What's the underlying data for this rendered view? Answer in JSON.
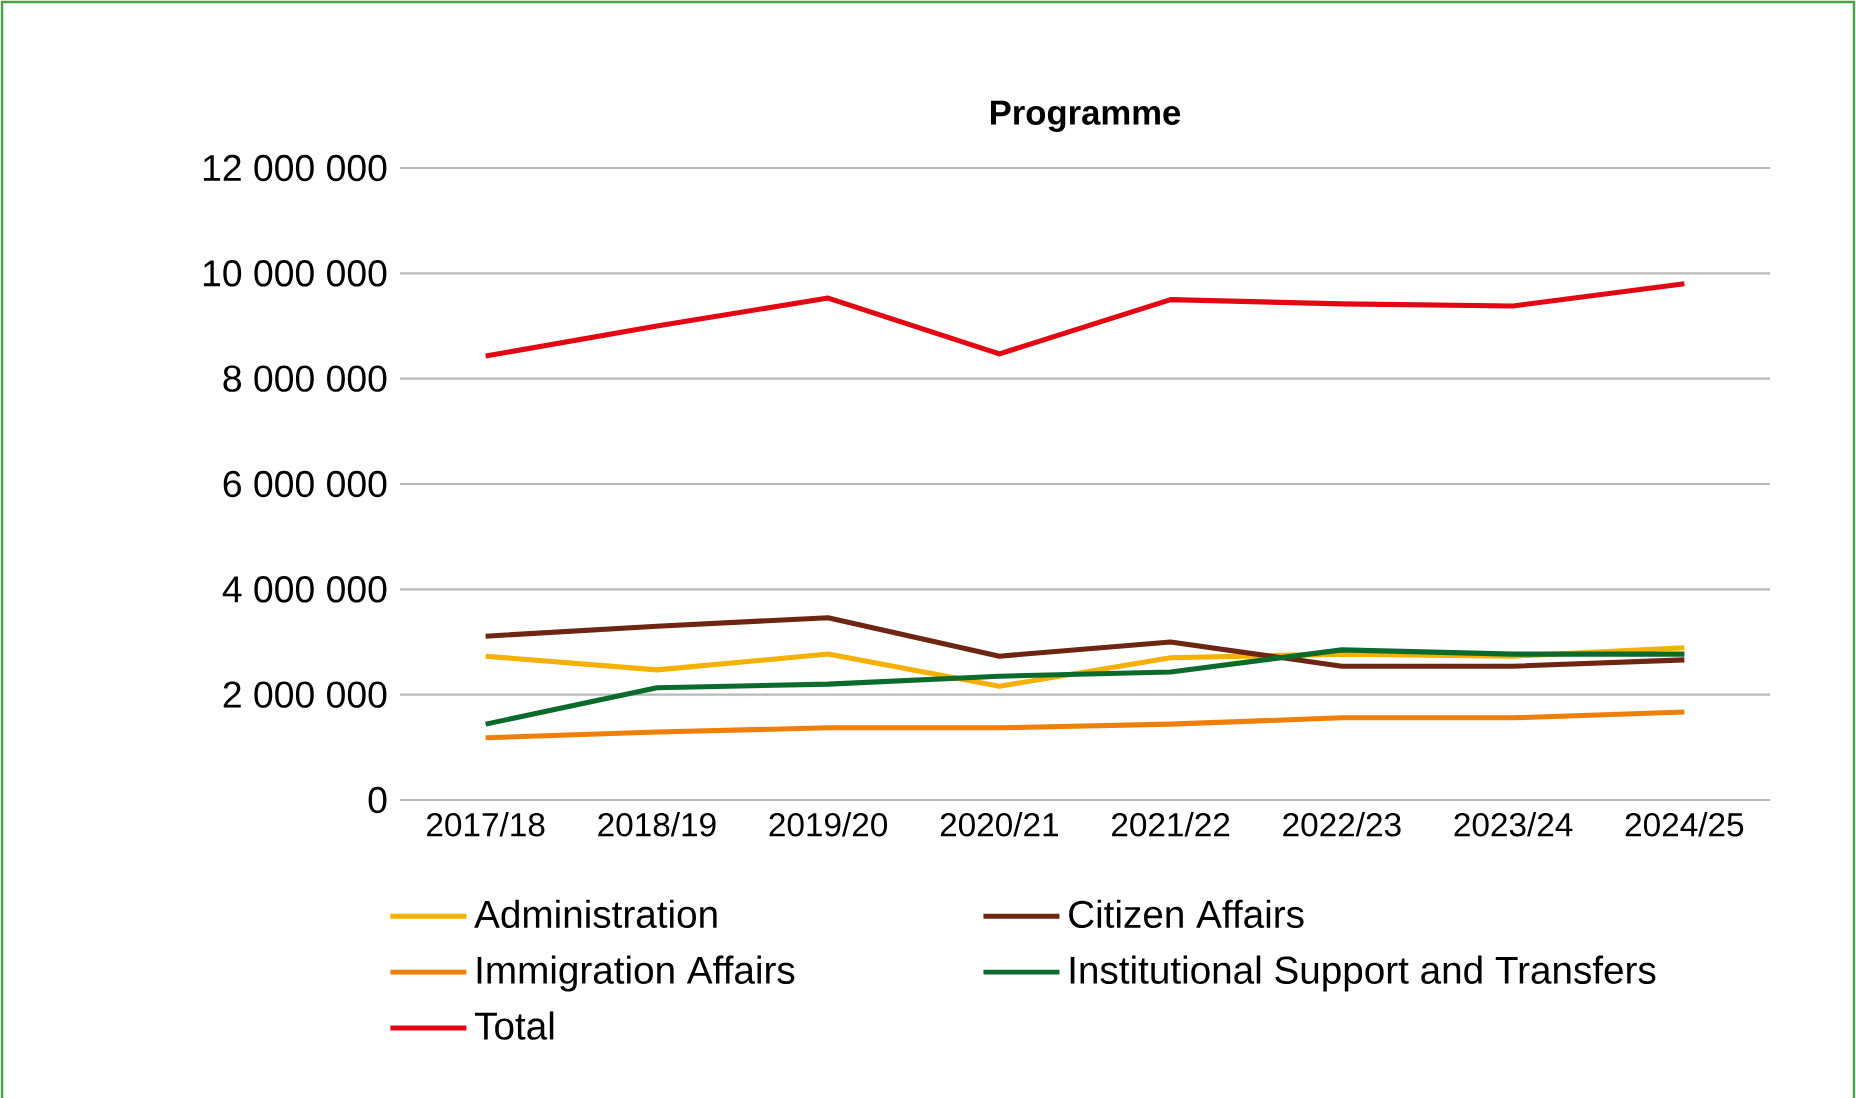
{
  "chart_data": {
    "type": "line",
    "title": "Programme",
    "categories": [
      "2017/18",
      "2018/19",
      "2019/20",
      "2020/21",
      "2021/22",
      "2022/23",
      "2023/24",
      "2024/25"
    ],
    "series": [
      {
        "name": "Administration",
        "color": "#f5b000",
        "values": [
          2730000,
          2470000,
          2770000,
          2160000,
          2700000,
          2770000,
          2730000,
          2890000
        ]
      },
      {
        "name": "Citizen Affairs",
        "color": "#6e2511",
        "values": [
          3110000,
          3300000,
          3460000,
          2730000,
          3000000,
          2540000,
          2540000,
          2660000
        ]
      },
      {
        "name": "Immigration Affairs",
        "color": "#f07f09",
        "values": [
          1180000,
          1290000,
          1370000,
          1370000,
          1440000,
          1560000,
          1560000,
          1670000
        ]
      },
      {
        "name": "Institutional Support and Transfers",
        "color": "#0a6b2c",
        "values": [
          1440000,
          2130000,
          2200000,
          2350000,
          2430000,
          2850000,
          2770000,
          2770000
        ]
      },
      {
        "name": "Total",
        "color": "#e30613",
        "values": [
          8430000,
          9000000,
          9530000,
          8470000,
          9500000,
          9420000,
          9380000,
          9800000
        ]
      }
    ],
    "ylim": [
      0,
      12000000
    ],
    "yticks": [
      {
        "value": 0,
        "label": "0"
      },
      {
        "value": 2000000,
        "label": "2 000 000"
      },
      {
        "value": 4000000,
        "label": "4 000 000"
      },
      {
        "value": 6000000,
        "label": "6 000 000"
      },
      {
        "value": 8000000,
        "label": "8 000 000"
      },
      {
        "value": 10000000,
        "label": "10 000 000"
      },
      {
        "value": 12000000,
        "label": "12 000 000"
      }
    ],
    "grid": "y",
    "legend": "bottom",
    "line_style": "solid"
  }
}
